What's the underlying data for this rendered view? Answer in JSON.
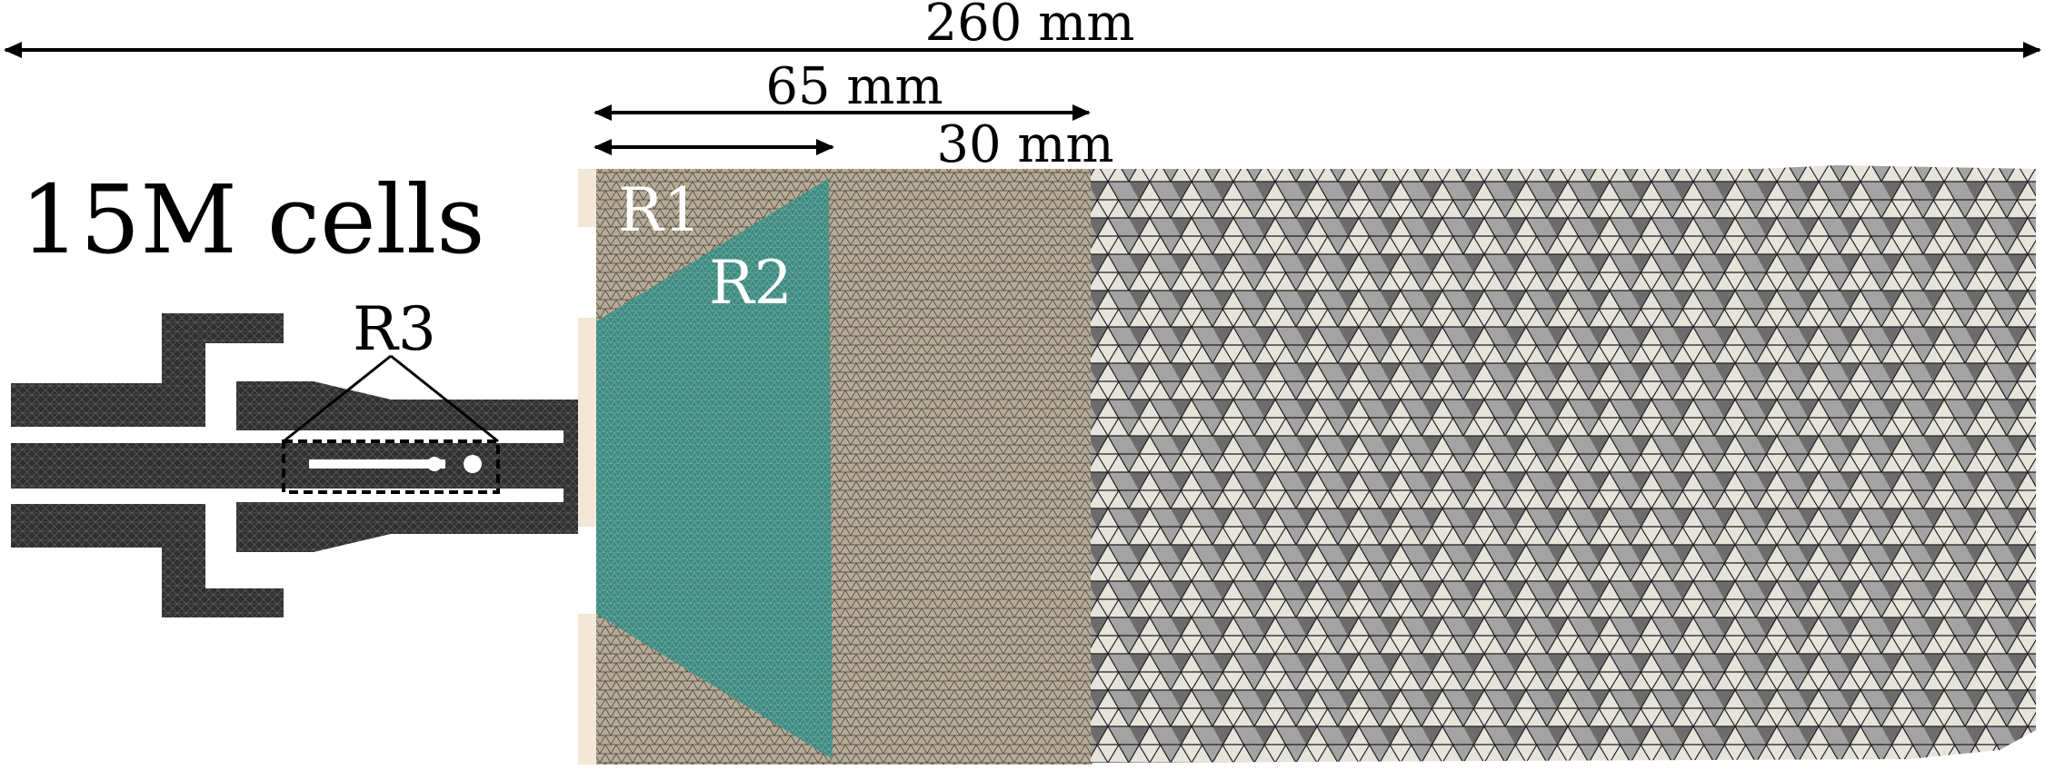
{
  "dimensions": {
    "total": "260 mm",
    "section_b": "65 mm",
    "section_a": "30 mm"
  },
  "cell_count": "15M cells",
  "regions": {
    "r1": "R1",
    "r2": "R2",
    "r3": "R3"
  },
  "colors": {
    "injector_mesh": "#2e2e2e",
    "fine_mesh": "#b7ab97",
    "region2": "#3f8a80",
    "coarse_mesh": "#9a9a9a",
    "coarse_mesh_light": "#e6e3da",
    "plenum_wall": "#f3e7d8"
  }
}
